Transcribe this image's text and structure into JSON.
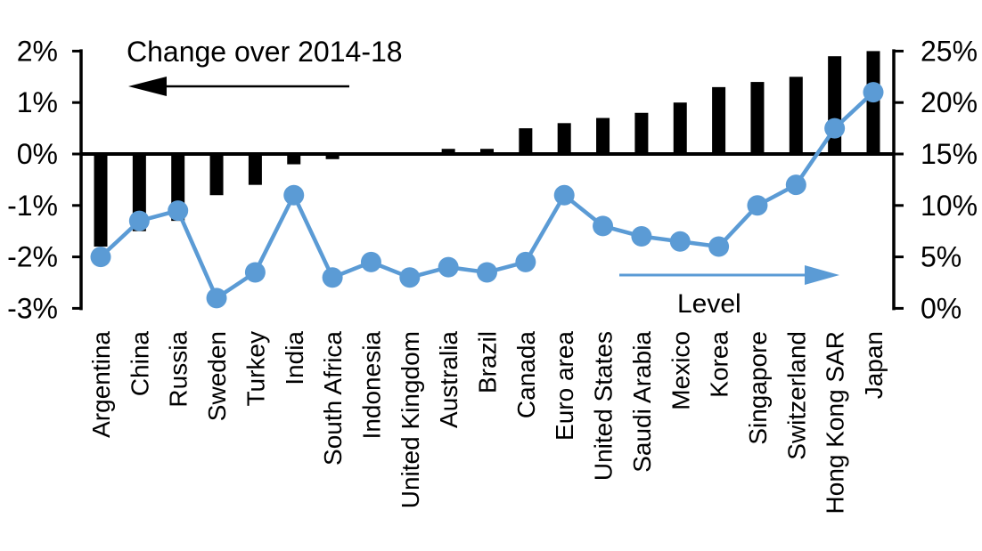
{
  "chart_data": {
    "type": "combo",
    "title": "Change over 2014-18",
    "categories": [
      "Argentina",
      "China",
      "Russia",
      "Sweden",
      "Turkey",
      "India",
      "South Africa",
      "Indonesia",
      "United Kingdom",
      "Australia",
      "Brazil",
      "Canada",
      "Euro area",
      "United States",
      "Saudi Arabia",
      "Mexico",
      "Korea",
      "Singapore",
      "Switzerland",
      "Hong Kong SAR",
      "Japan"
    ],
    "series": [
      {
        "name": "Change over 2014-18",
        "type": "bar",
        "axis": "left",
        "color": "#000000",
        "unit": "percentage points",
        "values": [
          -1.8,
          -1.5,
          -1.3,
          -0.8,
          -0.6,
          -0.2,
          -0.1,
          0,
          0,
          0.1,
          0.1,
          0.5,
          0.6,
          0.7,
          0.8,
          1.0,
          1.3,
          1.4,
          1.5,
          1.9,
          2.0
        ]
      },
      {
        "name": "Level",
        "type": "line",
        "axis": "right",
        "color": "#5B9BD5",
        "unit": "%",
        "values": [
          5,
          8.5,
          9.5,
          1,
          3.5,
          11,
          3,
          4.5,
          3,
          4,
          3.5,
          4.5,
          11,
          8,
          7,
          6.5,
          6,
          10,
          12,
          17.5,
          21
        ]
      }
    ],
    "left_axis": {
      "tick_labels": [
        "2%",
        "1%",
        "0%",
        "-1%",
        "-2%",
        "-3%"
      ],
      "tick_values": [
        2,
        1,
        0,
        -1,
        -2,
        -3
      ],
      "range": [
        -3,
        2
      ]
    },
    "right_axis": {
      "tick_labels": [
        "25%",
        "20%",
        "15%",
        "10%",
        "5%",
        "0%"
      ],
      "tick_values": [
        25,
        20,
        15,
        10,
        5,
        0
      ],
      "range": [
        0,
        25
      ]
    },
    "annotations": [
      {
        "text": "Change over 2014-18",
        "arrow_direction": "left",
        "color": "#000000",
        "applies_to": "bars"
      },
      {
        "text": "Level",
        "arrow_direction": "right",
        "color": "#5B9BD5",
        "applies_to": "line"
      }
    ],
    "grid": false,
    "legend_position": "in-plot-annotations"
  },
  "colors": {
    "bar": "#000000",
    "line": "#5B9BD5",
    "axis": "#000000",
    "text": "#000000",
    "background": "#FFFFFF"
  }
}
